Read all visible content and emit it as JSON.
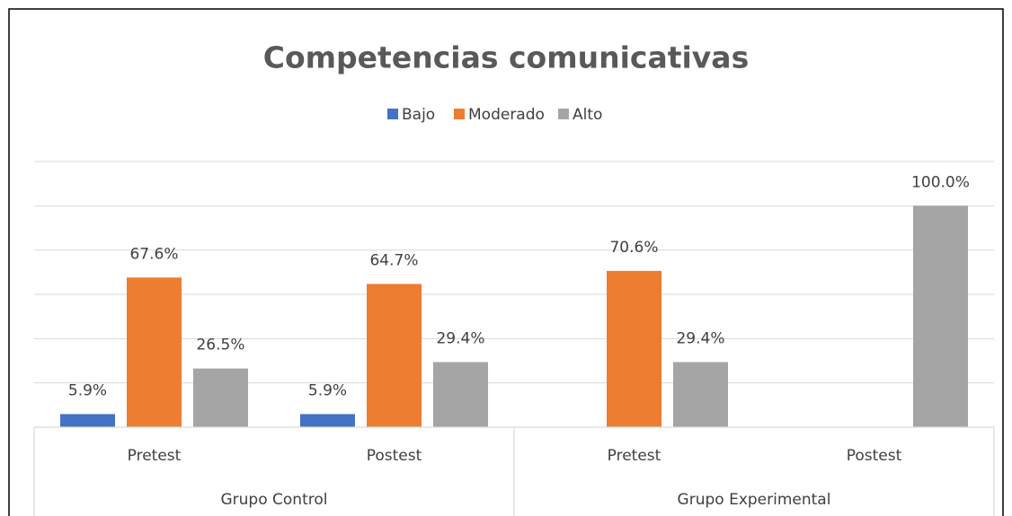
{
  "chart_data": {
    "type": "bar",
    "title": "Competencias comunicativas",
    "categories": [
      "Pretest",
      "Postest",
      "Pretest",
      "Postest"
    ],
    "groups": [
      "Grupo Control",
      "Grupo Experimental"
    ],
    "series": [
      {
        "name": "Bajo",
        "color": "#4472c4",
        "values": [
          5.9,
          5.9,
          null,
          null
        ],
        "value_labels": [
          "5.9%",
          "5.9%",
          null,
          null
        ]
      },
      {
        "name": "Moderado",
        "color": "#ed7d31",
        "values": [
          67.6,
          64.7,
          70.6,
          null
        ],
        "value_labels": [
          "67.6%",
          "64.7%",
          "70.6%",
          null
        ]
      },
      {
        "name": "Alto",
        "color": "#a5a5a5",
        "values": [
          26.5,
          29.4,
          29.4,
          100.0
        ],
        "value_labels": [
          "26.5%",
          "29.4%",
          "29.4%",
          "100.0%"
        ]
      }
    ],
    "ylim": [
      0,
      120
    ],
    "yticks": [
      0,
      20,
      40,
      60,
      80,
      100,
      120
    ],
    "grid": true,
    "legend": "top"
  }
}
